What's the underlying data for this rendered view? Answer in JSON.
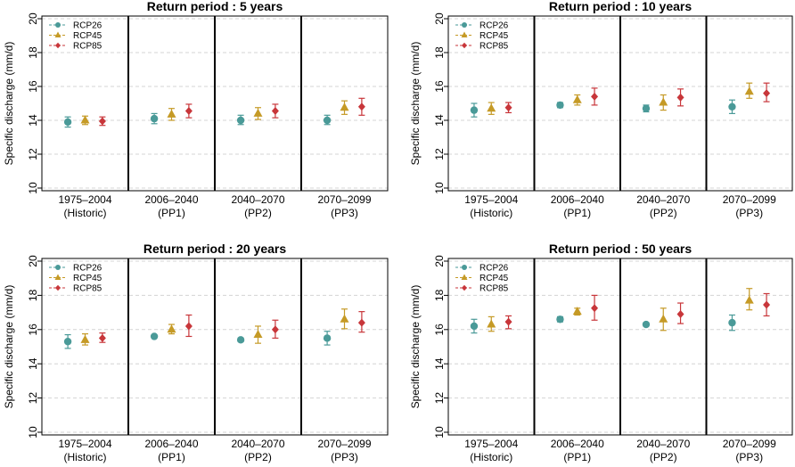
{
  "chart_data": {
    "type": "scatter",
    "ylabel": "Specific discharge (mm/d)",
    "ylim": [
      10,
      20
    ],
    "yticks": [
      10,
      12,
      14,
      16,
      18,
      20
    ],
    "grid": "horizontal dashed",
    "categories": [
      {
        "period": "1975–2004",
        "sub": "(Historic)"
      },
      {
        "period": "2006–2040",
        "sub": "(PP1)"
      },
      {
        "period": "2040–2070",
        "sub": "(PP2)"
      },
      {
        "period": "2070–2099",
        "sub": "(PP3)"
      }
    ],
    "legend_position": "top-left",
    "series_style": [
      {
        "name": "RCP26",
        "color": "#4a9a98",
        "marker": "circle"
      },
      {
        "name": "RCP45",
        "color": "#c59a26",
        "marker": "triangle"
      },
      {
        "name": "RCP85",
        "color": "#c8363a",
        "marker": "diamond"
      }
    ],
    "panels": [
      {
        "title": "Return period : 5 years",
        "series": [
          {
            "name": "RCP26",
            "values": [
              13.9,
              14.1,
              14.0,
              14.0
            ],
            "low": [
              13.6,
              13.8,
              13.75,
              13.75
            ],
            "high": [
              14.2,
              14.4,
              14.3,
              14.3
            ]
          },
          {
            "name": "RCP45",
            "values": [
              14.0,
              14.35,
              14.4,
              14.75
            ],
            "low": [
              13.75,
              14.0,
              14.05,
              14.35
            ],
            "high": [
              14.25,
              14.7,
              14.75,
              15.15
            ]
          },
          {
            "name": "RCP85",
            "values": [
              13.95,
              14.55,
              14.55,
              14.8
            ],
            "low": [
              13.7,
              14.15,
              14.15,
              14.3
            ],
            "high": [
              14.2,
              14.95,
              14.95,
              15.3
            ]
          }
        ]
      },
      {
        "title": "Return period : 10 years",
        "series": [
          {
            "name": "RCP26",
            "values": [
              14.6,
              14.9,
              14.7,
              14.8
            ],
            "low": [
              14.2,
              14.75,
              14.5,
              14.4
            ],
            "high": [
              15.0,
              15.05,
              14.9,
              15.2
            ]
          },
          {
            "name": "RCP45",
            "values": [
              14.7,
              15.2,
              15.05,
              15.7
            ],
            "low": [
              14.35,
              14.9,
              14.6,
              15.3
            ],
            "high": [
              15.05,
              15.5,
              15.5,
              16.2
            ]
          },
          {
            "name": "RCP85",
            "values": [
              14.75,
              15.4,
              15.35,
              15.6
            ],
            "low": [
              14.45,
              14.9,
              14.85,
              15.1
            ],
            "high": [
              15.05,
              15.9,
              15.85,
              16.2
            ]
          }
        ]
      },
      {
        "title": "Return period : 20 years",
        "series": [
          {
            "name": "RCP26",
            "values": [
              15.3,
              15.6,
              15.4,
              15.5
            ],
            "low": [
              14.9,
              15.55,
              15.3,
              15.1
            ],
            "high": [
              15.7,
              15.65,
              15.5,
              15.9
            ]
          },
          {
            "name": "RCP45",
            "values": [
              15.4,
              16.0,
              15.7,
              16.6
            ],
            "low": [
              15.1,
              15.75,
              15.2,
              16.05
            ],
            "high": [
              15.75,
              16.3,
              16.2,
              17.2
            ]
          },
          {
            "name": "RCP85",
            "values": [
              15.5,
              16.2,
              16.0,
              16.4
            ],
            "low": [
              15.25,
              15.6,
              15.5,
              15.85
            ],
            "high": [
              15.8,
              16.85,
              16.55,
              17.05
            ]
          }
        ]
      },
      {
        "title": "Return period : 50 years",
        "series": [
          {
            "name": "RCP26",
            "values": [
              16.2,
              16.6,
              16.3,
              16.4
            ],
            "low": [
              15.8,
              16.45,
              16.2,
              15.95
            ],
            "high": [
              16.6,
              16.75,
              16.4,
              16.85
            ]
          },
          {
            "name": "RCP45",
            "values": [
              16.3,
              17.05,
              16.6,
              17.7
            ],
            "low": [
              15.9,
              16.85,
              15.95,
              17.15
            ],
            "high": [
              16.75,
              17.25,
              17.25,
              18.4
            ]
          },
          {
            "name": "RCP85",
            "values": [
              16.45,
              17.25,
              16.9,
              17.45
            ],
            "low": [
              16.05,
              16.55,
              16.35,
              16.8
            ],
            "high": [
              16.8,
              18.0,
              17.55,
              18.1
            ]
          }
        ]
      }
    ]
  }
}
